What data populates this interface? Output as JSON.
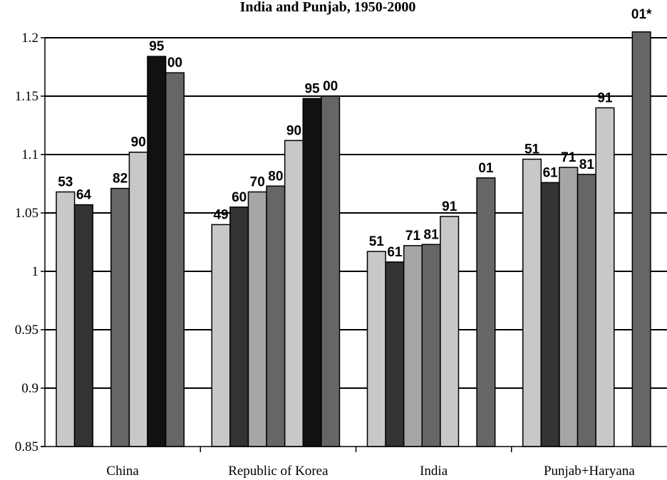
{
  "chart_data": {
    "type": "bar",
    "title": "India and Punjab, 1950-2000",
    "xlabel": "",
    "ylabel": "",
    "ylim": [
      0.85,
      1.2
    ],
    "yticks": [
      "0.85",
      "0.9",
      "0.95",
      "1",
      "1.05",
      "1.1",
      "1.15",
      "1.2"
    ],
    "grid": true,
    "groups": [
      {
        "category": "China",
        "bars": [
          {
            "label": "53",
            "value": 1.068,
            "color": "#c8c8c8"
          },
          {
            "label": "64",
            "value": 1.057,
            "color": "#333333"
          },
          {
            "label": "",
            "value": null,
            "color": "#ffffff"
          },
          {
            "label": "82",
            "value": 1.071,
            "color": "#666666"
          },
          {
            "label": "90",
            "value": 1.102,
            "color": "#c8c8c8"
          },
          {
            "label": "95",
            "value": 1.184,
            "color": "#111111"
          },
          {
            "label": "00",
            "value": 1.17,
            "color": "#666666"
          }
        ]
      },
      {
        "category": "Republic of Korea",
        "bars": [
          {
            "label": "49",
            "value": 1.04,
            "color": "#c8c8c8"
          },
          {
            "label": "60",
            "value": 1.055,
            "color": "#333333"
          },
          {
            "label": "70",
            "value": 1.068,
            "color": "#a6a6a6"
          },
          {
            "label": "80",
            "value": 1.073,
            "color": "#666666"
          },
          {
            "label": "90",
            "value": 1.112,
            "color": "#c8c8c8"
          },
          {
            "label": "95",
            "value": 1.148,
            "color": "#111111"
          },
          {
            "label": "00",
            "value": 1.15,
            "color": "#666666"
          }
        ]
      },
      {
        "category": "India",
        "bars": [
          {
            "label": "51",
            "value": 1.017,
            "color": "#c8c8c8"
          },
          {
            "label": "61",
            "value": 1.008,
            "color": "#333333"
          },
          {
            "label": "71",
            "value": 1.022,
            "color": "#a6a6a6"
          },
          {
            "label": "81",
            "value": 1.023,
            "color": "#666666"
          },
          {
            "label": "91",
            "value": 1.047,
            "color": "#c8c8c8"
          },
          {
            "label": "",
            "value": null,
            "color": "#ffffff"
          },
          {
            "label": "01",
            "value": 1.08,
            "color": "#666666"
          }
        ]
      },
      {
        "category": "Punjab+Haryana",
        "bars": [
          {
            "label": "51",
            "value": 1.096,
            "color": "#c8c8c8"
          },
          {
            "label": "61",
            "value": 1.076,
            "color": "#333333"
          },
          {
            "label": "71",
            "value": 1.089,
            "color": "#a6a6a6"
          },
          {
            "label": "81",
            "value": 1.083,
            "color": "#666666"
          },
          {
            "label": "91",
            "value": 1.14,
            "color": "#c8c8c8"
          },
          {
            "label": "",
            "value": null,
            "color": "#ffffff"
          },
          {
            "label": "01*",
            "value": 1.21,
            "color": "#666666"
          }
        ]
      }
    ]
  }
}
